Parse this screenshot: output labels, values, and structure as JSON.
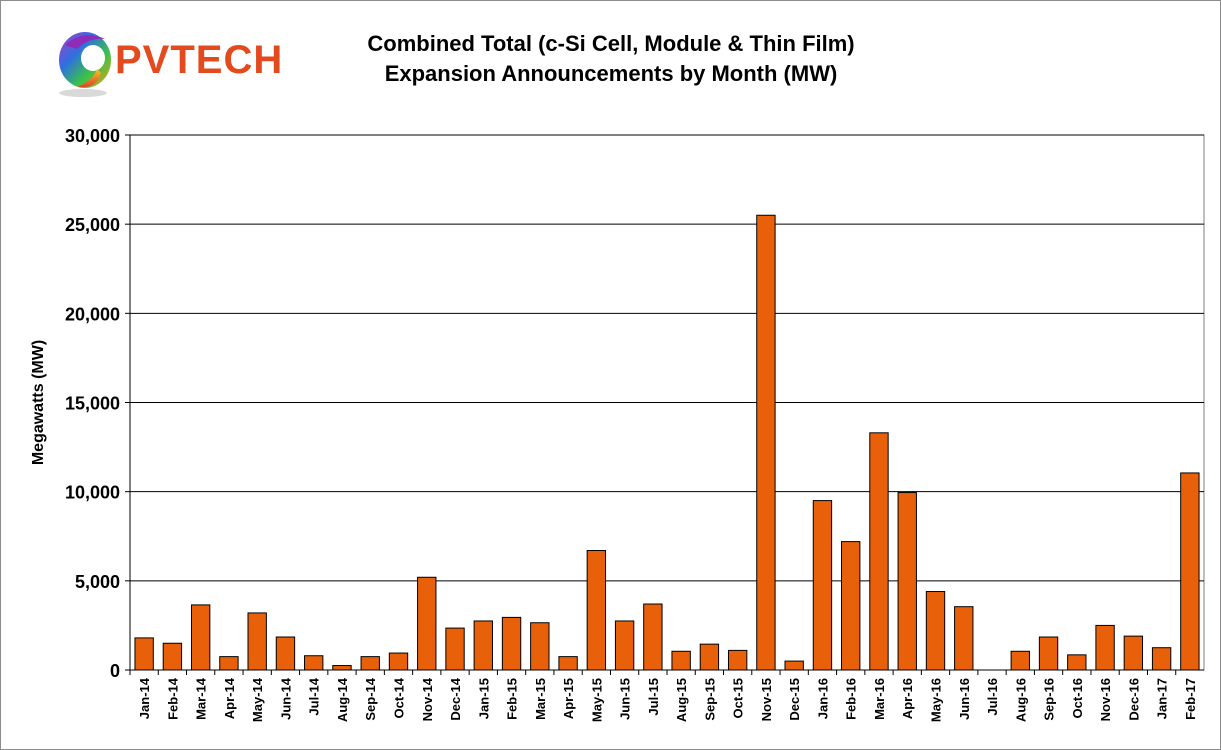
{
  "logo": {
    "text": "PVTECH"
  },
  "chart_data": {
    "type": "bar",
    "title": "Combined Total (c-Si Cell, Module & Thin Film)",
    "subtitle": "Expansion Announcements by Month (MW)",
    "xlabel": "",
    "ylabel": "Megawatts (MW)",
    "ylim": [
      0,
      30000
    ],
    "yticks": [
      0,
      5000,
      10000,
      15000,
      20000,
      25000,
      30000
    ],
    "ytick_labels": [
      "0",
      "5,000",
      "10,000",
      "15,000",
      "20,000",
      "25,000",
      "30,000"
    ],
    "grid": true,
    "bar_color": "#e8600a",
    "categories": [
      "Jan-14",
      "Feb-14",
      "Mar-14",
      "Apr-14",
      "May-14",
      "Jun-14",
      "Jul-14",
      "Aug-14",
      "Sep-14",
      "Oct-14",
      "Nov-14",
      "Dec-14",
      "Jan-15",
      "Feb-15",
      "Mar-15",
      "Apr-15",
      "May-15",
      "Jun-15",
      "Jul-15",
      "Aug-15",
      "Sep-15",
      "Oct-15",
      "Nov-15",
      "Dec-15",
      "Jan-16",
      "Feb-16",
      "Mar-16",
      "Apr-16",
      "May-16",
      "Jun-16",
      "Jul-16",
      "Aug-16",
      "Sep-16",
      "Oct-16",
      "Nov-16",
      "Dec-16",
      "Jan-17",
      "Feb-17"
    ],
    "values": [
      1800,
      1500,
      3650,
      750,
      3200,
      1850,
      800,
      250,
      750,
      950,
      5200,
      2350,
      2750,
      2950,
      2650,
      750,
      6700,
      2750,
      3700,
      1050,
      1450,
      1100,
      25500,
      500,
      9500,
      7200,
      13300,
      9950,
      4400,
      3550,
      0,
      1050,
      1850,
      850,
      2500,
      1900,
      1250,
      11050
    ]
  }
}
